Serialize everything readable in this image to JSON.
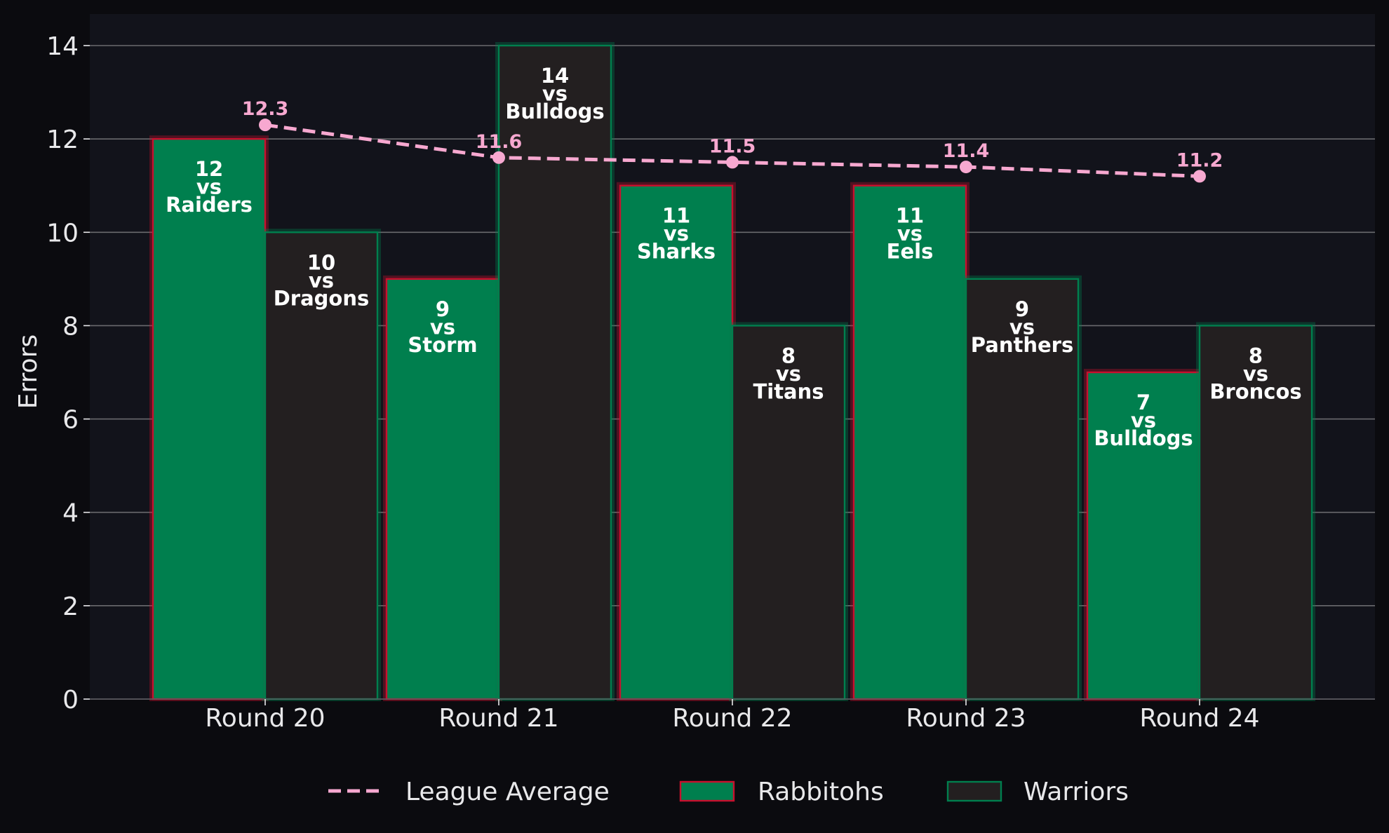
{
  "chart_data": {
    "type": "bar",
    "categories": [
      "Round 20",
      "Round 21",
      "Round 22",
      "Round 23",
      "Round 24"
    ],
    "ylabel": "Errors",
    "xlabel": "",
    "ylim": [
      0,
      14
    ],
    "yticks": [
      0,
      2,
      4,
      6,
      8,
      10,
      12,
      14
    ],
    "grid": true,
    "legend_position": "bottom-center",
    "series": [
      {
        "name": "Rabbitohs",
        "values": [
          12,
          9,
          11,
          11,
          7
        ],
        "opponents": [
          "Raiders",
          "Storm",
          "Sharks",
          "Eels",
          "Bulldogs"
        ],
        "fill": "#007f4e",
        "edge": "#c8102e"
      },
      {
        "name": "Warriors",
        "values": [
          10,
          14,
          8,
          9,
          8
        ],
        "opponents": [
          "Dragons",
          "Bulldogs",
          "Titans",
          "Panthers",
          "Broncos"
        ],
        "fill": "#231f20",
        "edge": "#007f4e"
      }
    ],
    "line": {
      "name": "League Average",
      "values": [
        12.3,
        11.6,
        11.5,
        11.4,
        11.2
      ],
      "labels": [
        "12.3",
        "11.6",
        "11.5",
        "11.4",
        "11.2"
      ],
      "color": "#f7a8d0",
      "style": "dashed"
    },
    "vs_text": "vs"
  },
  "colors": {
    "figure_bg": "#0b0b0f",
    "plot_bg": "#12131b",
    "grid": "#6a6a6e",
    "text": "#e8e8ea",
    "bar_label": "#ffffff"
  }
}
